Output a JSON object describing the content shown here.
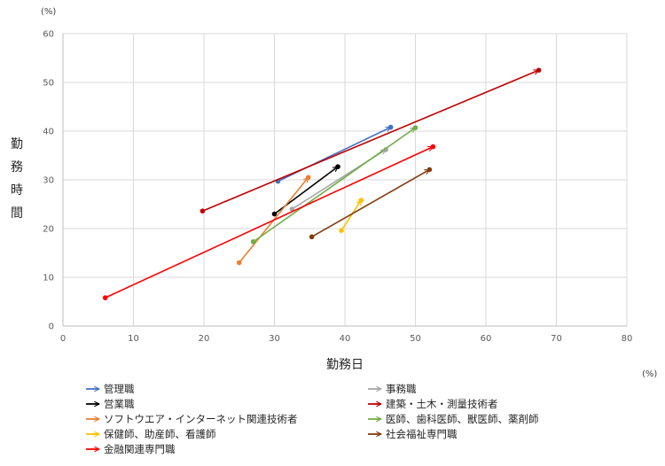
{
  "chart_data": {
    "type": "scatter",
    "xlabel": "勤務日",
    "ylabel": "勤務時間",
    "x_unit": "(%)",
    "y_unit": "(%)",
    "xlim": [
      0,
      80
    ],
    "ylim": [
      0,
      60
    ],
    "x_ticks": [
      0,
      10,
      20,
      30,
      40,
      50,
      60,
      70,
      80
    ],
    "y_ticks": [
      0,
      10,
      20,
      30,
      40,
      50,
      60
    ],
    "grid": true,
    "legend_position": "bottom",
    "series": [
      {
        "name": "管理職",
        "color": "#4472C4",
        "points": [
          {
            "x": 30.5,
            "y": 29.7
          },
          {
            "x": 46.5,
            "y": 40.8
          }
        ]
      },
      {
        "name": "事務職",
        "color": "#A5A5A5",
        "points": [
          {
            "x": 32.5,
            "y": 24.0
          },
          {
            "x": 45.8,
            "y": 36.2
          }
        ]
      },
      {
        "name": "営業職",
        "color": "#000000",
        "points": [
          {
            "x": 30.0,
            "y": 23.0
          },
          {
            "x": 39.0,
            "y": 32.7
          }
        ]
      },
      {
        "name": "建築・土木・測量技術者",
        "color": "#C00000",
        "points": [
          {
            "x": 19.8,
            "y": 23.6
          },
          {
            "x": 67.5,
            "y": 52.5
          }
        ]
      },
      {
        "name": "ソフトウエア・インターネット関連技術者",
        "color": "#ED7D31",
        "points": [
          {
            "x": 25.0,
            "y": 13.0
          },
          {
            "x": 34.8,
            "y": 30.5
          }
        ]
      },
      {
        "name": "医師、歯科医師、獣医師、薬剤師",
        "color": "#70AD47",
        "points": [
          {
            "x": 27.0,
            "y": 17.3
          },
          {
            "x": 50.0,
            "y": 40.7
          }
        ]
      },
      {
        "name": "保健師、助産師、看護師",
        "color": "#FFC000",
        "points": [
          {
            "x": 39.5,
            "y": 19.6
          },
          {
            "x": 42.3,
            "y": 25.8
          }
        ]
      },
      {
        "name": "社会福祉専門職",
        "color": "#843C0C",
        "points": [
          {
            "x": 35.3,
            "y": 18.3
          },
          {
            "x": 52.0,
            "y": 32.1
          }
        ]
      },
      {
        "name": "金融関連専門職",
        "color": "#FF0000",
        "points": [
          {
            "x": 6.0,
            "y": 5.8
          },
          {
            "x": 52.5,
            "y": 36.8
          }
        ]
      }
    ]
  }
}
